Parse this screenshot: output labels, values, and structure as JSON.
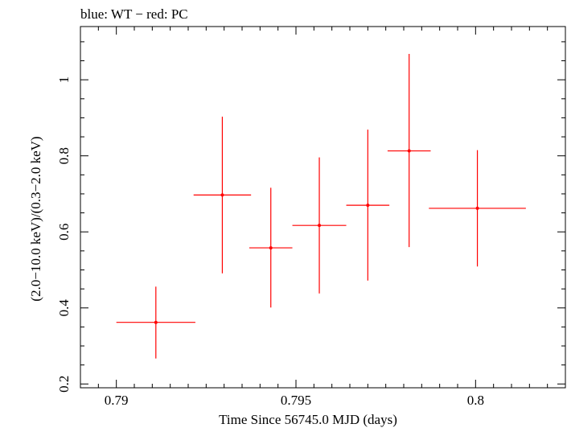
{
  "chart_data": {
    "type": "scatter",
    "title": "blue: WT − red: PC",
    "xlabel": "Time Since 56745.0 MJD (days)",
    "ylabel": "(2.0−10.0 keV)/(0.3−2.0 keV)",
    "xlim": [
      0.789,
      0.8025
    ],
    "ylim": [
      0.19,
      1.14
    ],
    "x_ticks": [
      0.79,
      0.795,
      0.8
    ],
    "x_tick_labels": [
      "0.79",
      "0.795",
      "0.8"
    ],
    "y_ticks": [
      0.2,
      0.4,
      0.6,
      0.8,
      1.0
    ],
    "y_tick_labels": [
      "0.2",
      "0.4",
      "0.6",
      "0.8",
      "1"
    ],
    "grid": false,
    "series": [
      {
        "name": "PC",
        "color": "#ff0000",
        "points": [
          {
            "x": 0.7911,
            "xerr": 0.0011,
            "y": 0.362,
            "ylo": 0.267,
            "yhi": 0.456
          },
          {
            "x": 0.79295,
            "xerr": 0.0008,
            "y": 0.697,
            "ylo": 0.491,
            "yhi": 0.903
          },
          {
            "x": 0.7943,
            "xerr": 0.0006,
            "y": 0.558,
            "ylo": 0.401,
            "yhi": 0.716
          },
          {
            "x": 0.79565,
            "xerr": 0.00075,
            "y": 0.617,
            "ylo": 0.438,
            "yhi": 0.796
          },
          {
            "x": 0.797,
            "xerr": 0.0006,
            "y": 0.67,
            "ylo": 0.472,
            "yhi": 0.869
          },
          {
            "x": 0.79815,
            "xerr": 0.0006,
            "y": 0.813,
            "ylo": 0.56,
            "yhi": 1.068
          },
          {
            "x": 0.80005,
            "xerr": 0.00135,
            "y": 0.662,
            "ylo": 0.509,
            "yhi": 0.815
          }
        ]
      }
    ]
  }
}
